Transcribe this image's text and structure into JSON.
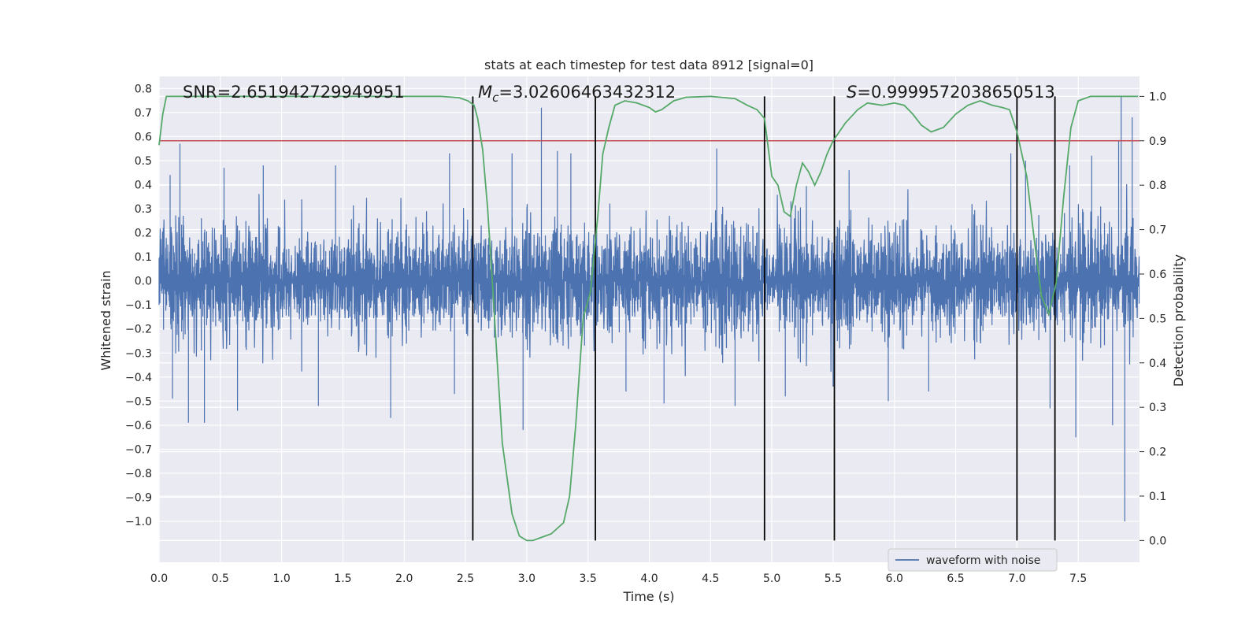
{
  "chart_data": {
    "type": "line",
    "title": "stats at each timestep for test data 8912 [signal=0]",
    "xlabel": "Time (s)",
    "ylabel": "Whitened strain",
    "y2label": "Detection probability",
    "xlim": [
      0,
      8
    ],
    "ylim": [
      -1.17,
      0.85
    ],
    "y2lim": [
      -0.049,
      1.045
    ],
    "xticks": [
      0.0,
      0.5,
      1.0,
      1.5,
      2.0,
      2.5,
      3.0,
      3.5,
      4.0,
      4.5,
      5.0,
      5.5,
      6.0,
      6.5,
      7.0,
      7.5
    ],
    "xtick_labels": [
      "0.0",
      "0.5",
      "1.0",
      "1.5",
      "2.0",
      "2.5",
      "3.0",
      "3.5",
      "4.0",
      "4.5",
      "5.0",
      "5.5",
      "6.0",
      "6.5",
      "7.0",
      "7.5"
    ],
    "yticks": [
      0.8,
      0.7,
      0.6,
      0.5,
      0.4,
      0.3,
      0.2,
      0.1,
      0.0,
      -0.1,
      -0.2,
      -0.3,
      -0.4,
      -0.5,
      -0.6,
      -0.7,
      -0.8,
      -0.9,
      -1.0
    ],
    "ytick_labels": [
      "0.8",
      "0.7",
      "0.6",
      "0.5",
      "0.4",
      "0.3",
      "0.2",
      "0.1",
      "0.0",
      "−0.1",
      "−0.2",
      "−0.3",
      "−0.4",
      "−0.5",
      "−0.6",
      "−0.7",
      "−0.8",
      "−0.9",
      "−1.0"
    ],
    "y2ticks": [
      1.0,
      0.9,
      0.8,
      0.7,
      0.6,
      0.5,
      0.4,
      0.3,
      0.2,
      0.1,
      0.0
    ],
    "y2tick_labels": [
      "1.0",
      "0.9",
      "0.8",
      "0.7",
      "0.6",
      "0.5",
      "0.4",
      "0.3",
      "0.2",
      "0.1",
      "0.0"
    ],
    "grid": true,
    "legend": {
      "position": "lower-right",
      "entries": [
        "waveform with noise"
      ]
    },
    "annotations": {
      "snr": "SNR=2.651942729949951",
      "mc_symbol": "M",
      "mc_sub": "c",
      "mc_value": "=3.02606463432312",
      "s_symbol": "S",
      "s_value": "=0.9999572038650513"
    },
    "series": [
      {
        "name": "waveform with noise",
        "axis": "left",
        "color": "#4c72b0",
        "style": "dense noise, envelope approx ±0.3, spikes to 0.77 and −1.0",
        "typical_amplitude": 0.25,
        "spikes": [
          {
            "x": 0.09,
            "y": 0.44
          },
          {
            "x": 0.11,
            "y": -0.49
          },
          {
            "x": 0.17,
            "y": 0.57
          },
          {
            "x": 0.24,
            "y": -0.59
          },
          {
            "x": 0.37,
            "y": -0.59
          },
          {
            "x": 0.53,
            "y": 0.47
          },
          {
            "x": 0.64,
            "y": -0.54
          },
          {
            "x": 0.85,
            "y": 0.48
          },
          {
            "x": 1.3,
            "y": -0.52
          },
          {
            "x": 1.44,
            "y": 0.48
          },
          {
            "x": 1.89,
            "y": -0.57
          },
          {
            "x": 2.37,
            "y": 0.53
          },
          {
            "x": 2.41,
            "y": -0.47
          },
          {
            "x": 2.88,
            "y": 0.53
          },
          {
            "x": 2.97,
            "y": -0.62
          },
          {
            "x": 3.12,
            "y": 0.72
          },
          {
            "x": 3.25,
            "y": 0.54
          },
          {
            "x": 3.36,
            "y": 0.53
          },
          {
            "x": 3.81,
            "y": -0.46
          },
          {
            "x": 4.12,
            "y": -0.51
          },
          {
            "x": 4.55,
            "y": 0.55
          },
          {
            "x": 4.7,
            "y": -0.52
          },
          {
            "x": 5.11,
            "y": -0.48
          },
          {
            "x": 5.5,
            "y": -0.44
          },
          {
            "x": 5.63,
            "y": 0.46
          },
          {
            "x": 5.95,
            "y": -0.5
          },
          {
            "x": 6.28,
            "y": -0.46
          },
          {
            "x": 6.95,
            "y": 0.53
          },
          {
            "x": 7.0,
            "y": -0.58
          },
          {
            "x": 7.07,
            "y": 0.5
          },
          {
            "x": 7.27,
            "y": -0.53
          },
          {
            "x": 7.43,
            "y": 0.48
          },
          {
            "x": 7.48,
            "y": -0.65
          },
          {
            "x": 7.61,
            "y": 0.52
          },
          {
            "x": 7.78,
            "y": -0.6
          },
          {
            "x": 7.83,
            "y": 0.58
          },
          {
            "x": 7.85,
            "y": 0.77
          },
          {
            "x": 7.88,
            "y": -1.0
          },
          {
            "x": 7.94,
            "y": 0.68
          }
        ]
      },
      {
        "name": "",
        "axis": "right",
        "color": "#55a868",
        "x": [
          0.0,
          0.03,
          0.06,
          0.2,
          0.5,
          1.0,
          1.5,
          2.0,
          2.3,
          2.45,
          2.52,
          2.57,
          2.6,
          2.64,
          2.68,
          2.72,
          2.76,
          2.8,
          2.88,
          2.94,
          3.0,
          3.05,
          3.1,
          3.2,
          3.3,
          3.35,
          3.4,
          3.46,
          3.52,
          3.58,
          3.62,
          3.67,
          3.72,
          3.8,
          3.9,
          4.0,
          4.05,
          4.1,
          4.2,
          4.3,
          4.5,
          4.7,
          4.8,
          4.88,
          4.94,
          5.0,
          5.05,
          5.1,
          5.15,
          5.2,
          5.25,
          5.3,
          5.35,
          5.4,
          5.45,
          5.5,
          5.6,
          5.7,
          5.78,
          5.9,
          6.0,
          6.08,
          6.15,
          6.22,
          6.3,
          6.4,
          6.5,
          6.6,
          6.7,
          6.8,
          6.88,
          6.94,
          7.0,
          7.08,
          7.14,
          7.2,
          7.26,
          7.32,
          7.38,
          7.44,
          7.5,
          7.6,
          7.99
        ],
        "y": [
          0.89,
          0.96,
          1.0,
          1.0,
          1.0,
          1.0,
          1.0,
          1.0,
          1.0,
          0.997,
          0.99,
          0.98,
          0.95,
          0.88,
          0.75,
          0.58,
          0.4,
          0.22,
          0.06,
          0.01,
          0.0,
          0.0,
          0.005,
          0.015,
          0.04,
          0.1,
          0.26,
          0.5,
          0.56,
          0.73,
          0.87,
          0.93,
          0.98,
          0.99,
          0.985,
          0.975,
          0.965,
          0.97,
          0.99,
          0.998,
          1.0,
          0.995,
          0.98,
          0.97,
          0.95,
          0.82,
          0.8,
          0.74,
          0.73,
          0.8,
          0.85,
          0.83,
          0.8,
          0.83,
          0.87,
          0.9,
          0.94,
          0.97,
          0.985,
          0.98,
          0.985,
          0.98,
          0.96,
          0.935,
          0.92,
          0.93,
          0.96,
          0.98,
          0.99,
          0.98,
          0.975,
          0.97,
          0.92,
          0.82,
          0.68,
          0.55,
          0.51,
          0.58,
          0.77,
          0.93,
          0.99,
          1.0,
          1.0
        ]
      },
      {
        "name": "",
        "axis": "right",
        "color": "#c44e52",
        "type": "threshold",
        "y": 0.9
      }
    ],
    "vlines": [
      2.56,
      3.56,
      4.94,
      5.51,
      7.0,
      7.31
    ],
    "vline_range": [
      0.0,
      1.0
    ]
  }
}
